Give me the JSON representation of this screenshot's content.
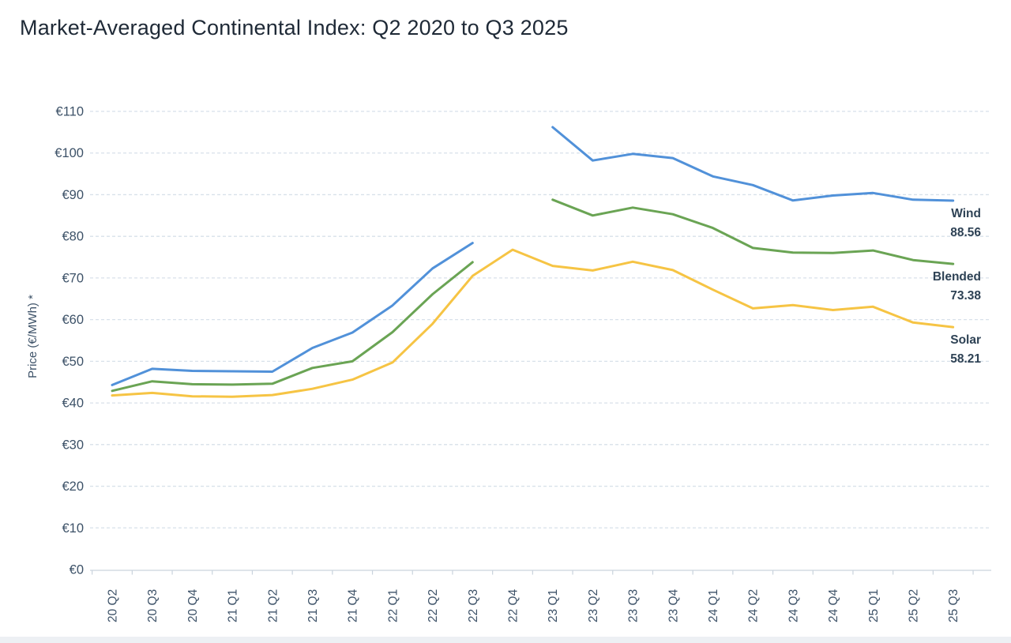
{
  "page": {
    "title": "Market-Averaged Continental Index: Q2 2020 to Q3 2025"
  },
  "colors": {
    "background": "#ffffff",
    "title_text": "#1e2936",
    "tick_text": "#3d5268",
    "series_label_text": "#2e4255",
    "grid": "#d8e1ea",
    "axis": "#c9d3dd",
    "bottom_bar": "#edf0f4",
    "wind_blue": "#5191d9",
    "blended_green": "#6aa454",
    "solar_yellow": "#f6c444"
  },
  "chart_data": {
    "type": "line",
    "title": "Market-Averaged Continental Index: Q2 2020 to Q3 2025",
    "xlabel": "",
    "ylabel": "Price (€/MWh) *",
    "ylim": [
      0,
      110
    ],
    "ytick_step": 10,
    "ytick_prefix": "€",
    "grid": "horizontal dashed gridlines, solid baseline at 0, x tick marks between categories",
    "legend_position": "labels with final values to the right of last data point",
    "x_tick_rotation": -90,
    "categories": [
      "20 Q2",
      "20 Q3",
      "20 Q4",
      "21 Q1",
      "21 Q2",
      "21 Q3",
      "21 Q4",
      "22 Q1",
      "22 Q2",
      "22 Q3",
      "22 Q4",
      "23 Q1",
      "23 Q2",
      "23 Q3",
      "23 Q4",
      "24 Q1",
      "24 Q2",
      "24 Q3",
      "24 Q4",
      "25 Q1",
      "25 Q2",
      "25 Q3"
    ],
    "gap_note": "Wind and Blended have no data for 22 Q4 (line gap); Solar is continuous",
    "series": [
      {
        "name": "Wind",
        "color": "#5191d9",
        "final_value_label": "88.56",
        "values": [
          44.3,
          48.2,
          47.7,
          47.6,
          47.5,
          53.2,
          56.9,
          63.4,
          72.3,
          78.4,
          null,
          106.2,
          98.2,
          99.8,
          98.8,
          94.4,
          92.3,
          88.6,
          89.8,
          90.4,
          88.8,
          88.56
        ]
      },
      {
        "name": "Blended",
        "color": "#6aa454",
        "final_value_label": "73.38",
        "values": [
          42.9,
          45.2,
          44.5,
          44.4,
          44.6,
          48.4,
          50.0,
          57.0,
          66.1,
          73.8,
          null,
          88.8,
          85.0,
          86.9,
          85.3,
          82.0,
          77.2,
          76.1,
          76.0,
          76.6,
          74.3,
          73.38
        ]
      },
      {
        "name": "Solar",
        "color": "#f6c444",
        "final_value_label": "58.21",
        "values": [
          41.8,
          42.4,
          41.6,
          41.5,
          41.9,
          43.4,
          45.6,
          49.7,
          59.0,
          70.5,
          76.8,
          72.9,
          71.8,
          73.9,
          71.9,
          67.2,
          62.7,
          63.5,
          62.3,
          63.1,
          59.3,
          58.21
        ]
      }
    ]
  }
}
